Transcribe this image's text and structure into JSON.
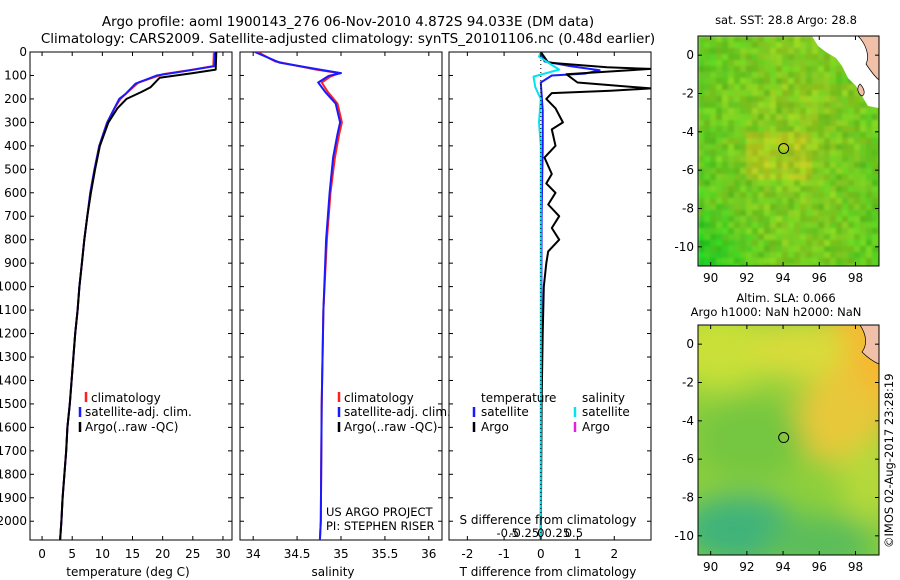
{
  "header": {
    "line1": "Argo profile: aoml 1900143_276 06-Nov-2010 4.872S 94.033E (DM data)",
    "line2": "Climatology: CARS2009. Satellite-adjusted climatology: synTS_20101106.nc (0.48d earlier)"
  },
  "colors": {
    "climatology": "#ff2020",
    "satellite": "#1a1aff",
    "argo": "#000000",
    "salinity_satellite": "#00e5ee",
    "salinity_argo": "#e020e0"
  },
  "project": {
    "line1": "US ARGO PROJECT",
    "line2": "PI: STEPHEN RISER"
  },
  "stamp": "©IMOS 02-Aug-2017 23:28:19",
  "chart_data": [
    {
      "type": "line",
      "name": "temperature",
      "xlabel": "temperature (deg C)",
      "xticks": [
        "0",
        "5",
        "10",
        "15",
        "20",
        "25",
        "30"
      ],
      "xlim": [
        -2,
        31.5
      ],
      "ylim": [
        2080,
        0
      ],
      "yticks": [
        "0",
        "100",
        "200",
        "300",
        "400",
        "500",
        "600",
        "700",
        "800",
        "900",
        "1000",
        "1100",
        "1200",
        "1300",
        "1400",
        "1500",
        "1600",
        "1700",
        "1800",
        "1900",
        "2000"
      ],
      "legend": [
        "climatology",
        "satellite-adj. clim.",
        "Argo(..raw -QC)"
      ],
      "series": [
        {
          "name": "climatology",
          "color": "#ff2020",
          "points": [
            [
              28.5,
              0
            ],
            [
              28.4,
              60
            ],
            [
              25,
              75
            ],
            [
              20,
              95
            ],
            [
              16,
              130
            ],
            [
              14,
              175
            ],
            [
              13,
              200
            ],
            [
              12,
              240
            ],
            [
              10.8,
              300
            ],
            [
              9.5,
              400
            ],
            [
              8.7,
              500
            ],
            [
              8,
              600
            ],
            [
              7.5,
              700
            ],
            [
              7,
              800
            ],
            [
              6.6,
              900
            ],
            [
              6.2,
              1000
            ],
            [
              5.9,
              1100
            ],
            [
              5.5,
              1200
            ],
            [
              5.2,
              1300
            ],
            [
              4.9,
              1400
            ],
            [
              4.6,
              1500
            ],
            [
              4.2,
              1600
            ],
            [
              4,
              1700
            ],
            [
              3.7,
              1800
            ],
            [
              3.4,
              1900
            ],
            [
              3.2,
              2000
            ],
            [
              3,
              2080
            ]
          ]
        },
        {
          "name": "satellite-adj. clim.",
          "color": "#1a1aff",
          "points": [
            [
              28.7,
              0
            ],
            [
              28.6,
              60
            ],
            [
              24,
              80
            ],
            [
              19,
              100
            ],
            [
              15.5,
              135
            ],
            [
              13.8,
              180
            ],
            [
              12.8,
              200
            ],
            [
              12,
              240
            ],
            [
              10.8,
              300
            ],
            [
              9.5,
              400
            ],
            [
              8.7,
              500
            ],
            [
              8,
              600
            ],
            [
              7.5,
              700
            ],
            [
              7,
              800
            ],
            [
              6.6,
              900
            ],
            [
              6.2,
              1000
            ],
            [
              5.9,
              1100
            ],
            [
              5.5,
              1200
            ],
            [
              5.2,
              1300
            ],
            [
              4.9,
              1400
            ],
            [
              4.6,
              1500
            ],
            [
              4.2,
              1600
            ],
            [
              4,
              1700
            ],
            [
              3.7,
              1800
            ],
            [
              3.4,
              1900
            ],
            [
              3.2,
              2000
            ],
            [
              3,
              2080
            ]
          ]
        },
        {
          "name": "Argo(..raw -QC)",
          "color": "#000000",
          "points": [
            [
              28.9,
              0
            ],
            [
              28.8,
              75
            ],
            [
              25,
              90
            ],
            [
              19.5,
              110
            ],
            [
              18,
              150
            ],
            [
              16.5,
              170
            ],
            [
              14,
              200
            ],
            [
              12.5,
              240
            ],
            [
              11,
              300
            ],
            [
              9.6,
              400
            ],
            [
              8.8,
              500
            ],
            [
              8.1,
              600
            ],
            [
              7.5,
              700
            ],
            [
              7,
              800
            ],
            [
              6.6,
              900
            ],
            [
              6.2,
              1000
            ],
            [
              5.9,
              1100
            ],
            [
              5.5,
              1200
            ],
            [
              5.2,
              1300
            ],
            [
              4.9,
              1400
            ],
            [
              4.6,
              1500
            ],
            [
              4.2,
              1600
            ],
            [
              4,
              1700
            ],
            [
              3.7,
              1800
            ],
            [
              3.4,
              1900
            ],
            [
              3.2,
              2000
            ],
            [
              3,
              2080
            ]
          ]
        }
      ]
    },
    {
      "type": "line",
      "name": "salinity",
      "xlabel": "salinity",
      "xticks": [
        "34",
        "34.5",
        "35",
        "35.5",
        "36"
      ],
      "xlim": [
        33.85,
        36.15
      ],
      "ylim": [
        2080,
        0
      ],
      "legend": [
        "climatology",
        "satellite-adj. clim.",
        "Argo(..raw -QC)"
      ],
      "series": [
        {
          "name": "climatology",
          "color": "#ff2020",
          "points": [
            [
              34.05,
              0
            ],
            [
              34.25,
              40
            ],
            [
              34.72,
              75
            ],
            [
              34.98,
              90
            ],
            [
              34.88,
              105
            ],
            [
              34.78,
              130
            ],
            [
              34.85,
              170
            ],
            [
              34.96,
              220
            ],
            [
              35.01,
              300
            ],
            [
              34.98,
              350
            ],
            [
              34.93,
              450
            ],
            [
              34.88,
              600
            ],
            [
              34.84,
              800
            ],
            [
              34.8,
              1100
            ],
            [
              34.78,
              1500
            ],
            [
              34.77,
              2000
            ],
            [
              34.76,
              2080
            ]
          ]
        },
        {
          "name": "satellite-adj. clim.",
          "color": "#1a1aff",
          "points": [
            [
              34.02,
              0
            ],
            [
              34.3,
              45
            ],
            [
              34.76,
              75
            ],
            [
              35,
              90
            ],
            [
              34.86,
              102
            ],
            [
              34.74,
              130
            ],
            [
              34.82,
              170
            ],
            [
              34.94,
              220
            ],
            [
              34.99,
              300
            ],
            [
              34.96,
              350
            ],
            [
              34.91,
              450
            ],
            [
              34.87,
              600
            ],
            [
              34.83,
              800
            ],
            [
              34.8,
              1100
            ],
            [
              34.78,
              1500
            ],
            [
              34.77,
              2000
            ],
            [
              34.76,
              2080
            ]
          ]
        }
      ]
    },
    {
      "type": "line",
      "name": "difference",
      "xlabel": "T difference from climatology",
      "xlabel_top": "S difference from climatology",
      "xticks": [
        "-2",
        "-1",
        "0",
        "1",
        "2"
      ],
      "xticks_top": [
        "-0.5",
        "-0.25",
        "0",
        "0.25",
        "0.5"
      ],
      "xlim": [
        -2.5,
        3.0
      ],
      "ylim": [
        2080,
        0
      ],
      "legend": {
        "temperature": "temperature",
        "salinity": "salinity",
        "entries": [
          "satellite",
          "Argo"
        ]
      },
      "series": [
        {
          "name": "T satellite",
          "color": "#1a1aff",
          "points": [
            [
              0,
              0
            ],
            [
              0.1,
              40
            ],
            [
              0.8,
              60
            ],
            [
              1.6,
              78
            ],
            [
              1.2,
              92
            ],
            [
              0.3,
              100
            ],
            [
              0,
              130
            ],
            [
              0.05,
              250
            ],
            [
              0.05,
              400
            ],
            [
              0.02,
              700
            ],
            [
              0.01,
              1200
            ],
            [
              0,
              2080
            ]
          ]
        },
        {
          "name": "T Argo",
          "color": "#000000",
          "points": [
            [
              0,
              0
            ],
            [
              0.2,
              45
            ],
            [
              1.8,
              65
            ],
            [
              3,
              72
            ],
            [
              2.2,
              80
            ],
            [
              0.7,
              95
            ],
            [
              1,
              130
            ],
            [
              3,
              155
            ],
            [
              1.9,
              165
            ],
            [
              0.3,
              175
            ],
            [
              0.15,
              200
            ],
            [
              0.4,
              240
            ],
            [
              0.6,
              300
            ],
            [
              0.3,
              330
            ],
            [
              0.4,
              400
            ],
            [
              0.1,
              450
            ],
            [
              0.3,
              520
            ],
            [
              0.15,
              560
            ],
            [
              0.4,
              600
            ],
            [
              0.2,
              650
            ],
            [
              0.5,
              700
            ],
            [
              0.3,
              750
            ],
            [
              0.5,
              800
            ],
            [
              0.2,
              850
            ],
            [
              0.15,
              900
            ],
            [
              0.08,
              1000
            ],
            [
              0.05,
              1200
            ],
            [
              0.02,
              1500
            ],
            [
              0,
              2080
            ]
          ]
        },
        {
          "name": "S satellite",
          "color": "#00e5ee",
          "points": [
            [
              0,
              0
            ],
            [
              -0.05,
              20
            ],
            [
              0.5,
              75
            ],
            [
              -0.2,
              105
            ],
            [
              -0.15,
              150
            ],
            [
              0,
              200
            ],
            [
              -0.05,
              300
            ],
            [
              0,
              400
            ],
            [
              0,
              1000
            ],
            [
              0,
              2080
            ]
          ]
        }
      ]
    },
    {
      "type": "heatmap",
      "name": "sst_map",
      "title": "sat. SST: 28.8  Argo: 28.8",
      "xticks": [
        "90",
        "92",
        "94",
        "96",
        "98"
      ],
      "yticks": [
        "0",
        "-2",
        "-4",
        "-6",
        "-8",
        "-10"
      ],
      "xlim": [
        89.3,
        99.3
      ],
      "ylim": [
        -11,
        1
      ],
      "marker": {
        "lon": 94.033,
        "lat": -4.872
      }
    },
    {
      "type": "heatmap",
      "name": "sla_map",
      "title": "Altim. SLA: 0.066",
      "subtitle": "Argo h1000: NaN h2000: NaN",
      "xticks": [
        "90",
        "92",
        "94",
        "96",
        "98"
      ],
      "yticks": [
        "0",
        "-2",
        "-4",
        "-6",
        "-8",
        "-10"
      ],
      "xlim": [
        89.3,
        99.3
      ],
      "ylim": [
        -11,
        1
      ],
      "marker": {
        "lon": 94.033,
        "lat": -4.872
      }
    }
  ]
}
